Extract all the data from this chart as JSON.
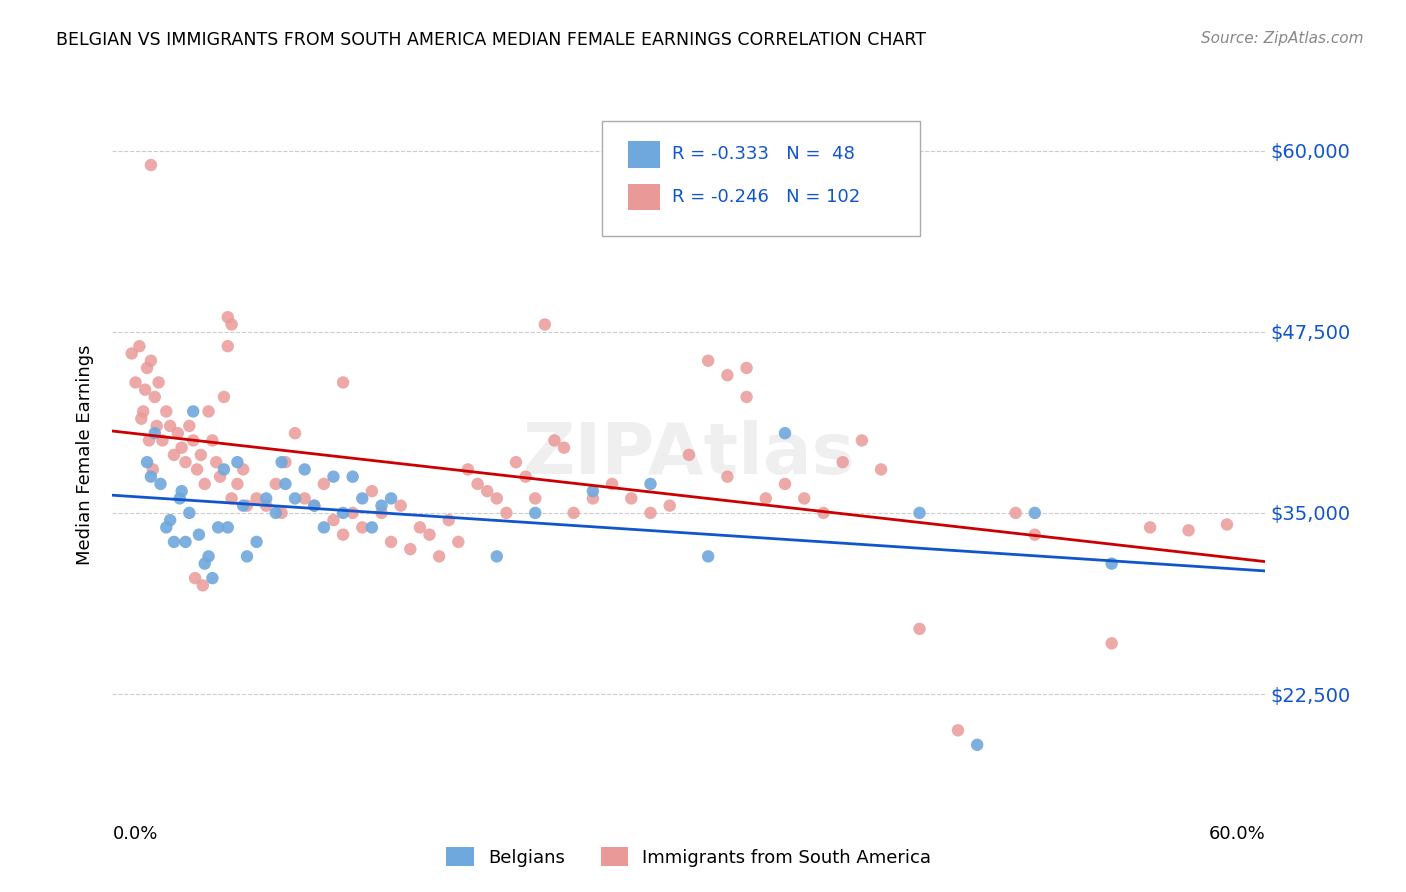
{
  "title": "BELGIAN VS IMMIGRANTS FROM SOUTH AMERICA MEDIAN FEMALE EARNINGS CORRELATION CHART",
  "source": "Source: ZipAtlas.com",
  "ylabel": "Median Female Earnings",
  "yticks": [
    22500,
    35000,
    47500,
    60000
  ],
  "ytick_labels": [
    "$22,500",
    "$35,000",
    "$47,500",
    "$60,000"
  ],
  "watermark": "ZIPAtlas",
  "legend1_label": "Belgians",
  "legend2_label": "Immigrants from South America",
  "r1": "-0.333",
  "n1": "48",
  "r2": "-0.246",
  "n2": "102",
  "blue_color": "#6fa8dc",
  "pink_color": "#ea9999",
  "blue_line_color": "#1155cc",
  "pink_line_color": "#cc0000",
  "blue_scatter": [
    [
      0.018,
      38500
    ],
    [
      0.02,
      37500
    ],
    [
      0.022,
      40500
    ],
    [
      0.025,
      37000
    ],
    [
      0.028,
      34000
    ],
    [
      0.03,
      34500
    ],
    [
      0.032,
      33000
    ],
    [
      0.035,
      36000
    ],
    [
      0.036,
      36500
    ],
    [
      0.038,
      33000
    ],
    [
      0.04,
      35000
    ],
    [
      0.042,
      42000
    ],
    [
      0.045,
      33500
    ],
    [
      0.048,
      31500
    ],
    [
      0.05,
      32000
    ],
    [
      0.052,
      30500
    ],
    [
      0.055,
      34000
    ],
    [
      0.058,
      38000
    ],
    [
      0.06,
      34000
    ],
    [
      0.065,
      38500
    ],
    [
      0.068,
      35500
    ],
    [
      0.07,
      32000
    ],
    [
      0.075,
      33000
    ],
    [
      0.08,
      36000
    ],
    [
      0.085,
      35000
    ],
    [
      0.088,
      38500
    ],
    [
      0.09,
      37000
    ],
    [
      0.095,
      36000
    ],
    [
      0.1,
      38000
    ],
    [
      0.105,
      35500
    ],
    [
      0.11,
      34000
    ],
    [
      0.115,
      37500
    ],
    [
      0.12,
      35000
    ],
    [
      0.125,
      37500
    ],
    [
      0.13,
      36000
    ],
    [
      0.135,
      34000
    ],
    [
      0.14,
      35500
    ],
    [
      0.145,
      36000
    ],
    [
      0.2,
      32000
    ],
    [
      0.22,
      35000
    ],
    [
      0.25,
      36500
    ],
    [
      0.28,
      37000
    ],
    [
      0.31,
      32000
    ],
    [
      0.35,
      40500
    ],
    [
      0.42,
      35000
    ],
    [
      0.45,
      19000
    ],
    [
      0.48,
      35000
    ],
    [
      0.52,
      31500
    ]
  ],
  "pink_scatter": [
    [
      0.01,
      46000
    ],
    [
      0.012,
      44000
    ],
    [
      0.014,
      46500
    ],
    [
      0.016,
      42000
    ],
    [
      0.018,
      45000
    ],
    [
      0.02,
      45500
    ],
    [
      0.022,
      43000
    ],
    [
      0.024,
      44000
    ],
    [
      0.026,
      40000
    ],
    [
      0.028,
      42000
    ],
    [
      0.03,
      41000
    ],
    [
      0.032,
      39000
    ],
    [
      0.034,
      40500
    ],
    [
      0.036,
      39500
    ],
    [
      0.038,
      38500
    ],
    [
      0.04,
      41000
    ],
    [
      0.042,
      40000
    ],
    [
      0.044,
      38000
    ],
    [
      0.046,
      39000
    ],
    [
      0.048,
      37000
    ],
    [
      0.05,
      42000
    ],
    [
      0.052,
      40000
    ],
    [
      0.054,
      38500
    ],
    [
      0.056,
      37500
    ],
    [
      0.058,
      43000
    ],
    [
      0.06,
      46500
    ],
    [
      0.062,
      36000
    ],
    [
      0.065,
      37000
    ],
    [
      0.068,
      38000
    ],
    [
      0.07,
      35500
    ],
    [
      0.075,
      36000
    ],
    [
      0.08,
      35500
    ],
    [
      0.085,
      37000
    ],
    [
      0.09,
      38500
    ],
    [
      0.095,
      40500
    ],
    [
      0.1,
      36000
    ],
    [
      0.105,
      35500
    ],
    [
      0.11,
      37000
    ],
    [
      0.115,
      34500
    ],
    [
      0.12,
      33500
    ],
    [
      0.125,
      35000
    ],
    [
      0.13,
      34000
    ],
    [
      0.135,
      36500
    ],
    [
      0.14,
      35000
    ],
    [
      0.145,
      33000
    ],
    [
      0.15,
      35500
    ],
    [
      0.155,
      32500
    ],
    [
      0.16,
      34000
    ],
    [
      0.165,
      33500
    ],
    [
      0.17,
      32000
    ],
    [
      0.175,
      34500
    ],
    [
      0.18,
      33000
    ],
    [
      0.185,
      38000
    ],
    [
      0.19,
      37000
    ],
    [
      0.195,
      36500
    ],
    [
      0.2,
      36000
    ],
    [
      0.205,
      35000
    ],
    [
      0.21,
      38500
    ],
    [
      0.215,
      37500
    ],
    [
      0.22,
      36000
    ],
    [
      0.225,
      48000
    ],
    [
      0.23,
      40000
    ],
    [
      0.235,
      39500
    ],
    [
      0.24,
      35000
    ],
    [
      0.25,
      36000
    ],
    [
      0.26,
      37000
    ],
    [
      0.27,
      36000
    ],
    [
      0.28,
      35000
    ],
    [
      0.29,
      35500
    ],
    [
      0.3,
      39000
    ],
    [
      0.31,
      45500
    ],
    [
      0.32,
      37500
    ],
    [
      0.33,
      45000
    ],
    [
      0.34,
      36000
    ],
    [
      0.35,
      37000
    ],
    [
      0.36,
      36000
    ],
    [
      0.37,
      35000
    ],
    [
      0.38,
      38500
    ],
    [
      0.39,
      40000
    ],
    [
      0.4,
      38000
    ],
    [
      0.02,
      59000
    ],
    [
      0.06,
      48500
    ],
    [
      0.062,
      48000
    ],
    [
      0.12,
      44000
    ],
    [
      0.32,
      44500
    ],
    [
      0.33,
      43000
    ],
    [
      0.42,
      27000
    ],
    [
      0.44,
      20000
    ],
    [
      0.47,
      35000
    ],
    [
      0.48,
      33500
    ],
    [
      0.52,
      26000
    ],
    [
      0.54,
      34000
    ],
    [
      0.56,
      33800
    ],
    [
      0.58,
      34200
    ],
    [
      0.015,
      41500
    ],
    [
      0.017,
      43500
    ],
    [
      0.019,
      40000
    ],
    [
      0.021,
      38000
    ],
    [
      0.023,
      41000
    ],
    [
      0.043,
      30500
    ],
    [
      0.047,
      30000
    ],
    [
      0.088,
      35000
    ]
  ],
  "xmin": 0.0,
  "xmax": 0.6,
  "ymin": 15000,
  "ymax": 63000,
  "trend_x_start": 0.0,
  "trend_x_end": 0.6
}
